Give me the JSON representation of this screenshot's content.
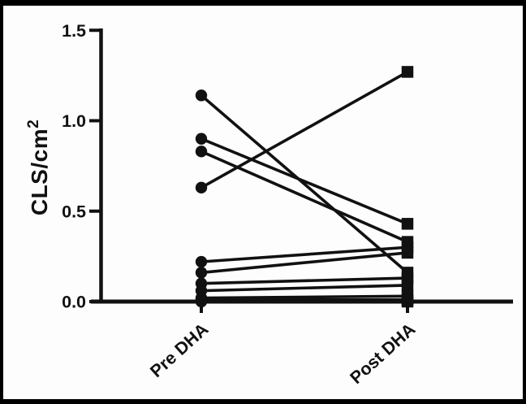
{
  "figure": {
    "background": "#fdfdfd",
    "frame_color": "#000000",
    "ink_color": "#111111"
  },
  "chart_data": {
    "type": "line",
    "subtype": "paired-before-after",
    "title": "",
    "xlabel": "",
    "ylabel": "CLS/cm²",
    "ylabel_base": "CLS/cm",
    "ylabel_sup": "2",
    "categories": [
      "Pre DHA",
      "Post DHA"
    ],
    "y_ticks": [
      "0.0",
      "0.5",
      "1.0",
      "1.5"
    ],
    "y_tick_values": [
      0.0,
      0.5,
      1.0,
      1.5
    ],
    "ylim": [
      0,
      1.5
    ],
    "grid": false,
    "legend_position": "none",
    "pre_marker": "filled-circle",
    "post_marker": "filled-square",
    "pairs": [
      {
        "pre": 1.14,
        "post": 0.16
      },
      {
        "pre": 0.9,
        "post": 0.43
      },
      {
        "pre": 0.83,
        "post": 0.33
      },
      {
        "pre": 0.63,
        "post": 1.27
      },
      {
        "pre": 0.22,
        "post": 0.3
      },
      {
        "pre": 0.16,
        "post": 0.27
      },
      {
        "pre": 0.1,
        "post": 0.13
      },
      {
        "pre": 0.06,
        "post": 0.09
      },
      {
        "pre": 0.02,
        "post": 0.03
      },
      {
        "pre": 0.01,
        "post": 0.01
      },
      {
        "pre": 0.0,
        "post": 0.0
      }
    ]
  }
}
